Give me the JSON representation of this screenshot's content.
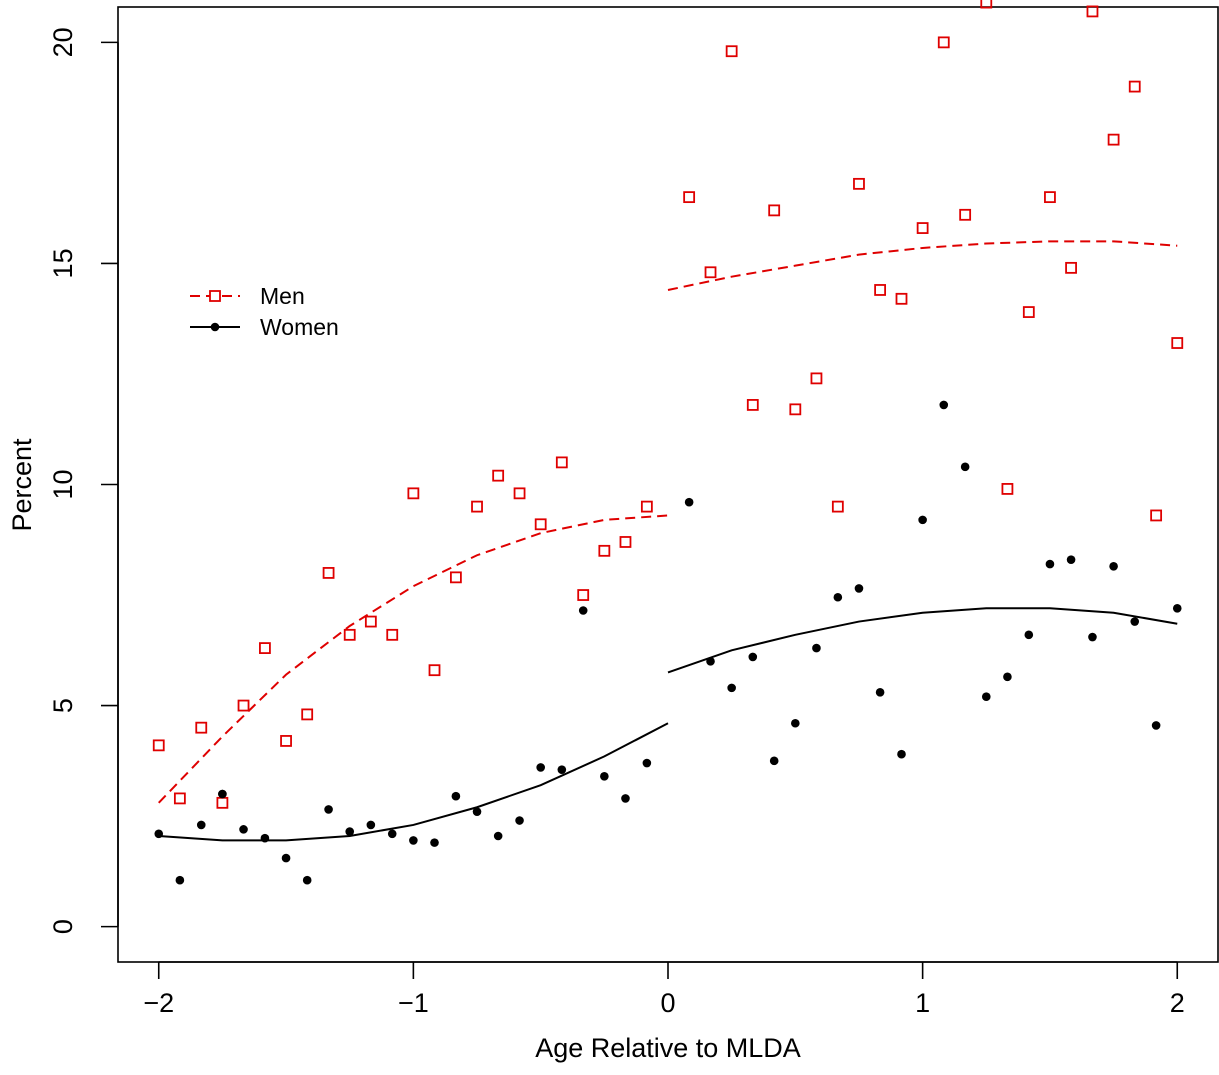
{
  "chart_data": {
    "type": "scatter",
    "title": "",
    "xlabel": "Age Relative to MLDA",
    "ylabel": "Percent",
    "xlim": [
      -2.16,
      2.16
    ],
    "ylim": [
      -0.8,
      20.8
    ],
    "xticks": [
      -2,
      -1,
      0,
      1,
      2
    ],
    "xtick_labels": [
      "−2",
      "−1",
      "0",
      "1",
      "2"
    ],
    "yticks": [
      0,
      5,
      10,
      15,
      20
    ],
    "ytick_labels": [
      "0",
      "5",
      "10",
      "15",
      "20"
    ],
    "grid": false,
    "legend_position": "top-left",
    "legend": [
      {
        "label": "Men",
        "color": "#DF0000",
        "marker": "open-square",
        "line": "dashed"
      },
      {
        "label": "Women",
        "color": "#000000",
        "marker": "filled-circle",
        "line": "solid"
      }
    ],
    "series": [
      {
        "name": "Men",
        "color": "#DF0000",
        "marker": "open-square",
        "x": [
          -2.0,
          -1.917,
          -1.833,
          -1.75,
          -1.667,
          -1.583,
          -1.5,
          -1.417,
          -1.333,
          -1.25,
          -1.167,
          -1.083,
          -1.0,
          -0.917,
          -0.833,
          -0.75,
          -0.667,
          -0.583,
          -0.5,
          -0.417,
          -0.333,
          -0.25,
          -0.167,
          -0.083,
          0.083,
          0.167,
          0.25,
          0.333,
          0.417,
          0.5,
          0.583,
          0.667,
          0.75,
          0.833,
          0.917,
          1.0,
          1.083,
          1.167,
          1.25,
          1.333,
          1.417,
          1.5,
          1.583,
          1.667,
          1.75,
          1.833,
          1.917,
          2.0
        ],
        "y": [
          4.1,
          2.9,
          4.5,
          2.8,
          5.0,
          6.3,
          4.2,
          4.8,
          8.0,
          6.6,
          6.9,
          6.6,
          9.8,
          5.8,
          7.9,
          9.5,
          10.2,
          9.8,
          9.1,
          10.5,
          7.5,
          8.5,
          8.7,
          9.5,
          16.5,
          14.8,
          19.8,
          11.8,
          16.2,
          11.7,
          12.4,
          9.5,
          16.8,
          14.4,
          14.2,
          15.8,
          20.0,
          16.1,
          20.9,
          9.9,
          13.9,
          16.5,
          14.9,
          20.7,
          17.8,
          19.0,
          9.3,
          13.2
        ],
        "fit": {
          "style": "dashed",
          "segments": [
            {
              "x": [
                -2.0,
                -1.75,
                -1.5,
                -1.25,
                -1.0,
                -0.75,
                -0.5,
                -0.25,
                0.0
              ],
              "y": [
                2.8,
                4.3,
                5.7,
                6.8,
                7.7,
                8.4,
                8.9,
                9.2,
                9.3
              ]
            },
            {
              "x": [
                0.0,
                0.25,
                0.5,
                0.75,
                1.0,
                1.25,
                1.5,
                1.75,
                2.0
              ],
              "y": [
                14.4,
                14.7,
                14.95,
                15.2,
                15.35,
                15.45,
                15.5,
                15.5,
                15.4
              ]
            }
          ]
        }
      },
      {
        "name": "Women",
        "color": "#000000",
        "marker": "filled-circle",
        "x": [
          -2.0,
          -1.917,
          -1.833,
          -1.75,
          -1.75,
          -1.667,
          -1.583,
          -1.5,
          -1.417,
          -1.333,
          -1.25,
          -1.167,
          -1.083,
          -1.0,
          -0.917,
          -0.833,
          -0.75,
          -0.667,
          -0.583,
          -0.5,
          -0.417,
          -0.333,
          -0.25,
          -0.167,
          -0.083,
          0.083,
          0.167,
          0.25,
          0.333,
          0.417,
          0.5,
          0.583,
          0.667,
          0.75,
          0.833,
          0.917,
          1.0,
          1.083,
          1.167,
          1.25,
          1.333,
          1.417,
          1.5,
          1.583,
          1.667,
          1.75,
          1.833,
          1.917,
          2.0
        ],
        "y": [
          2.1,
          1.05,
          2.3,
          3.0,
          3.0,
          2.2,
          2.0,
          1.55,
          1.05,
          2.65,
          2.15,
          2.3,
          2.1,
          1.95,
          1.9,
          2.95,
          2.6,
          2.05,
          2.4,
          3.6,
          3.55,
          7.15,
          3.4,
          2.9,
          3.7,
          9.6,
          6.0,
          5.4,
          6.1,
          3.75,
          4.6,
          6.3,
          7.45,
          7.65,
          5.3,
          3.9,
          9.2,
          11.8,
          10.4,
          5.2,
          5.65,
          6.6,
          8.2,
          8.3,
          6.55,
          8.15,
          6.9,
          4.55,
          7.2
        ],
        "fit": {
          "style": "solid",
          "segments": [
            {
              "x": [
                -2.0,
                -1.75,
                -1.5,
                -1.25,
                -1.0,
                -0.75,
                -0.5,
                -0.25,
                0.0
              ],
              "y": [
                2.05,
                1.95,
                1.95,
                2.05,
                2.3,
                2.7,
                3.2,
                3.85,
                4.6
              ]
            },
            {
              "x": [
                0.0,
                0.25,
                0.5,
                0.75,
                1.0,
                1.25,
                1.5,
                1.75,
                2.0
              ],
              "y": [
                5.75,
                6.25,
                6.6,
                6.9,
                7.1,
                7.2,
                7.2,
                7.1,
                6.85
              ]
            }
          ]
        }
      }
    ]
  }
}
